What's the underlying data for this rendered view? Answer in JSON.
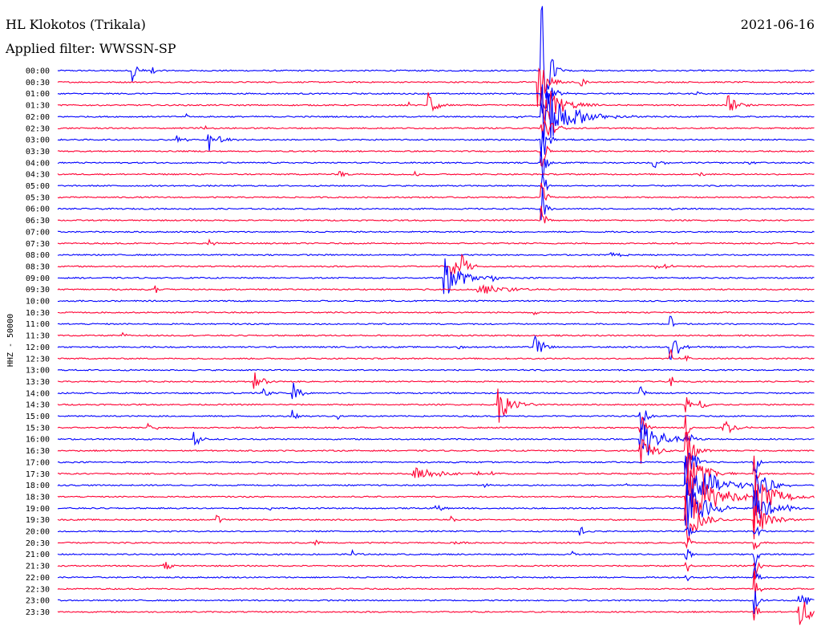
{
  "chart_data": {
    "type": "line",
    "title": "HL Klokotos (Trikala)",
    "date": "2021-06-16",
    "subtitle": "Applied filter: WWSSN-SP",
    "ylabel": "HHZ - 50000",
    "time_labels": [
      "00:00",
      "00:30",
      "01:00",
      "01:30",
      "02:00",
      "02:30",
      "03:00",
      "03:30",
      "04:00",
      "04:30",
      "05:00",
      "05:30",
      "06:00",
      "06:30",
      "07:00",
      "07:30",
      "08:00",
      "08:30",
      "09:00",
      "09:30",
      "10:00",
      "10:30",
      "11:00",
      "11:30",
      "12:00",
      "12:30",
      "13:00",
      "13:30",
      "14:00",
      "14:30",
      "15:00",
      "15:30",
      "16:00",
      "16:30",
      "17:00",
      "17:30",
      "18:00",
      "18:30",
      "19:00",
      "19:30",
      "20:00",
      "20:30",
      "21:00",
      "21:30",
      "22:00",
      "22:30",
      "23:00",
      "23:30"
    ],
    "trace_colors": [
      "#0000ff",
      "#ff0033"
    ],
    "events": [
      {
        "trace": 0,
        "x": 0.1,
        "amp": 14,
        "dur": 0.006
      },
      {
        "trace": 0,
        "x": 0.125,
        "amp": 6,
        "dur": 0.005
      },
      {
        "trace": 0,
        "x": 0.64,
        "amp": 90,
        "dur": 0.008
      },
      {
        "trace": 1,
        "x": 0.635,
        "amp": 40,
        "dur": 0.01
      },
      {
        "trace": 1,
        "x": 0.69,
        "amp": 8,
        "dur": 0.006
      },
      {
        "trace": 2,
        "x": 0.64,
        "amp": 30,
        "dur": 0.01
      },
      {
        "trace": 2,
        "x": 0.845,
        "amp": 5,
        "dur": 0.006
      },
      {
        "trace": 3,
        "x": 0.49,
        "amp": 25,
        "dur": 0.008
      },
      {
        "trace": 3,
        "x": 0.64,
        "amp": 35,
        "dur": 0.02
      },
      {
        "trace": 3,
        "x": 0.885,
        "amp": 14,
        "dur": 0.01
      },
      {
        "trace": 3,
        "x": 0.465,
        "amp": 3,
        "dur": 0.004
      },
      {
        "trace": 4,
        "x": 0.64,
        "amp": 45,
        "dur": 0.03
      },
      {
        "trace": 4,
        "x": 0.605,
        "amp": 5,
        "dur": 0.005
      },
      {
        "trace": 4,
        "x": 0.17,
        "amp": 4,
        "dur": 0.004
      },
      {
        "trace": 5,
        "x": 0.19,
        "amp": 6,
        "dur": 0.006
      },
      {
        "trace": 5,
        "x": 0.64,
        "amp": 25,
        "dur": 0.01
      },
      {
        "trace": 6,
        "x": 0.155,
        "amp": 8,
        "dur": 0.008
      },
      {
        "trace": 6,
        "x": 0.2,
        "amp": 18,
        "dur": 0.012
      },
      {
        "trace": 6,
        "x": 0.64,
        "amp": 40,
        "dur": 0.006
      },
      {
        "trace": 7,
        "x": 0.64,
        "amp": 30,
        "dur": 0.004
      },
      {
        "trace": 8,
        "x": 0.785,
        "amp": 12,
        "dur": 0.008
      },
      {
        "trace": 8,
        "x": 0.915,
        "amp": 4,
        "dur": 0.004
      },
      {
        "trace": 8,
        "x": 0.64,
        "amp": 30,
        "dur": 0.004
      },
      {
        "trace": 9,
        "x": 0.373,
        "amp": 8,
        "dur": 0.005
      },
      {
        "trace": 9,
        "x": 0.473,
        "amp": 4,
        "dur": 0.004
      },
      {
        "trace": 9,
        "x": 0.85,
        "amp": 3,
        "dur": 0.004
      },
      {
        "trace": 10,
        "x": 0.64,
        "amp": 30,
        "dur": 0.004
      },
      {
        "trace": 11,
        "x": 0.64,
        "amp": 30,
        "dur": 0.004
      },
      {
        "trace": 12,
        "x": 0.64,
        "amp": 30,
        "dur": 0.004
      },
      {
        "trace": 12,
        "x": 0.81,
        "amp": 3,
        "dur": 0.004
      },
      {
        "trace": 13,
        "x": 0.64,
        "amp": 25,
        "dur": 0.004
      },
      {
        "trace": 15,
        "x": 0.2,
        "amp": 5,
        "dur": 0.006
      },
      {
        "trace": 16,
        "x": 0.73,
        "amp": 4,
        "dur": 0.012
      },
      {
        "trace": 17,
        "x": 0.52,
        "amp": 20,
        "dur": 0.012
      },
      {
        "trace": 17,
        "x": 0.79,
        "amp": 8,
        "dur": 0.012
      },
      {
        "trace": 17,
        "x": 0.535,
        "amp": 10,
        "dur": 0.008
      },
      {
        "trace": 18,
        "x": 0.51,
        "amp": 28,
        "dur": 0.02
      },
      {
        "trace": 18,
        "x": 0.575,
        "amp": 4,
        "dur": 0.006
      },
      {
        "trace": 19,
        "x": 0.555,
        "amp": 8,
        "dur": 0.03
      },
      {
        "trace": 19,
        "x": 0.13,
        "amp": 6,
        "dur": 0.004
      },
      {
        "trace": 19,
        "x": 0.48,
        "amp": 3,
        "dur": 0.004
      },
      {
        "trace": 21,
        "x": 0.63,
        "amp": 3,
        "dur": 0.004
      },
      {
        "trace": 22,
        "x": 0.81,
        "amp": 10,
        "dur": 0.004
      },
      {
        "trace": 23,
        "x": 0.085,
        "amp": 4,
        "dur": 0.005
      },
      {
        "trace": 24,
        "x": 0.63,
        "amp": 16,
        "dur": 0.01
      },
      {
        "trace": 24,
        "x": 0.81,
        "amp": 20,
        "dur": 0.01
      },
      {
        "trace": 24,
        "x": 0.53,
        "amp": 3,
        "dur": 0.004
      },
      {
        "trace": 25,
        "x": 0.83,
        "amp": 5,
        "dur": 0.004
      },
      {
        "trace": 25,
        "x": 0.81,
        "amp": 12,
        "dur": 0.004
      },
      {
        "trace": 27,
        "x": 0.26,
        "amp": 12,
        "dur": 0.01
      },
      {
        "trace": 27,
        "x": 0.81,
        "amp": 8,
        "dur": 0.004
      },
      {
        "trace": 28,
        "x": 0.31,
        "amp": 16,
        "dur": 0.008
      },
      {
        "trace": 28,
        "x": 0.27,
        "amp": 8,
        "dur": 0.006
      },
      {
        "trace": 28,
        "x": 0.23,
        "amp": 4,
        "dur": 0.004
      },
      {
        "trace": 28,
        "x": 0.77,
        "amp": 10,
        "dur": 0.004
      },
      {
        "trace": 29,
        "x": 0.58,
        "amp": 28,
        "dur": 0.015
      },
      {
        "trace": 29,
        "x": 0.85,
        "amp": 8,
        "dur": 0.008
      },
      {
        "trace": 29,
        "x": 0.83,
        "amp": 20,
        "dur": 0.004
      },
      {
        "trace": 30,
        "x": 0.31,
        "amp": 10,
        "dur": 0.006
      },
      {
        "trace": 30,
        "x": 0.37,
        "amp": 4,
        "dur": 0.006
      },
      {
        "trace": 30,
        "x": 0.77,
        "amp": 25,
        "dur": 0.006
      },
      {
        "trace": 31,
        "x": 0.12,
        "amp": 6,
        "dur": 0.008
      },
      {
        "trace": 31,
        "x": 0.88,
        "amp": 12,
        "dur": 0.012
      },
      {
        "trace": 31,
        "x": 0.77,
        "amp": 25,
        "dur": 0.006
      },
      {
        "trace": 31,
        "x": 0.83,
        "amp": 30,
        "dur": 0.004
      },
      {
        "trace": 32,
        "x": 0.18,
        "amp": 10,
        "dur": 0.008
      },
      {
        "trace": 32,
        "x": 0.77,
        "amp": 35,
        "dur": 0.02
      },
      {
        "trace": 32,
        "x": 0.83,
        "amp": 30,
        "dur": 0.004
      },
      {
        "trace": 33,
        "x": 0.77,
        "amp": 20,
        "dur": 0.015
      },
      {
        "trace": 33,
        "x": 0.83,
        "amp": 30,
        "dur": 0.01
      },
      {
        "trace": 34,
        "x": 0.83,
        "amp": 30,
        "dur": 0.01
      },
      {
        "trace": 34,
        "x": 0.92,
        "amp": 30,
        "dur": 0.004
      },
      {
        "trace": 35,
        "x": 0.47,
        "amp": 9,
        "dur": 0.03
      },
      {
        "trace": 35,
        "x": 0.555,
        "amp": 4,
        "dur": 0.004
      },
      {
        "trace": 35,
        "x": 0.575,
        "amp": 4,
        "dur": 0.004
      },
      {
        "trace": 35,
        "x": 0.83,
        "amp": 30,
        "dur": 0.02
      },
      {
        "trace": 35,
        "x": 0.92,
        "amp": 30,
        "dur": 0.004
      },
      {
        "trace": 36,
        "x": 0.565,
        "amp": 5,
        "dur": 0.005
      },
      {
        "trace": 36,
        "x": 0.75,
        "amp": 4,
        "dur": 0.004
      },
      {
        "trace": 36,
        "x": 0.83,
        "amp": 40,
        "dur": 0.03
      },
      {
        "trace": 36,
        "x": 0.92,
        "amp": 30,
        "dur": 0.015
      },
      {
        "trace": 37,
        "x": 0.83,
        "amp": 45,
        "dur": 0.03
      },
      {
        "trace": 37,
        "x": 0.92,
        "amp": 40,
        "dur": 0.02
      },
      {
        "trace": 38,
        "x": 0.28,
        "amp": 4,
        "dur": 0.004
      },
      {
        "trace": 38,
        "x": 0.5,
        "amp": 8,
        "dur": 0.006
      },
      {
        "trace": 38,
        "x": 0.83,
        "amp": 40,
        "dur": 0.02
      },
      {
        "trace": 38,
        "x": 0.92,
        "amp": 30,
        "dur": 0.015
      },
      {
        "trace": 38,
        "x": 0.965,
        "amp": 6,
        "dur": 0.006
      },
      {
        "trace": 39,
        "x": 0.21,
        "amp": 6,
        "dur": 0.006
      },
      {
        "trace": 39,
        "x": 0.52,
        "amp": 4,
        "dur": 0.004
      },
      {
        "trace": 39,
        "x": 0.83,
        "amp": 35,
        "dur": 0.015
      },
      {
        "trace": 39,
        "x": 0.92,
        "amp": 25,
        "dur": 0.015
      },
      {
        "trace": 40,
        "x": 0.69,
        "amp": 8,
        "dur": 0.006
      },
      {
        "trace": 40,
        "x": 0.83,
        "amp": 20,
        "dur": 0.006
      },
      {
        "trace": 40,
        "x": 0.92,
        "amp": 15,
        "dur": 0.006
      },
      {
        "trace": 41,
        "x": 0.34,
        "amp": 4,
        "dur": 0.005
      },
      {
        "trace": 41,
        "x": 0.525,
        "amp": 4,
        "dur": 0.005
      },
      {
        "trace": 41,
        "x": 0.83,
        "amp": 20,
        "dur": 0.004
      },
      {
        "trace": 41,
        "x": 0.92,
        "amp": 25,
        "dur": 0.004
      },
      {
        "trace": 42,
        "x": 0.39,
        "amp": 5,
        "dur": 0.006
      },
      {
        "trace": 42,
        "x": 0.68,
        "amp": 4,
        "dur": 0.006
      },
      {
        "trace": 42,
        "x": 0.83,
        "amp": 15,
        "dur": 0.004
      },
      {
        "trace": 42,
        "x": 0.92,
        "amp": 25,
        "dur": 0.004
      },
      {
        "trace": 43,
        "x": 0.14,
        "amp": 10,
        "dur": 0.008
      },
      {
        "trace": 43,
        "x": 0.83,
        "amp": 15,
        "dur": 0.004
      },
      {
        "trace": 43,
        "x": 0.92,
        "amp": 25,
        "dur": 0.004
      },
      {
        "trace": 44,
        "x": 0.83,
        "amp": 8,
        "dur": 0.004
      },
      {
        "trace": 44,
        "x": 0.92,
        "amp": 25,
        "dur": 0.004
      },
      {
        "trace": 45,
        "x": 0.92,
        "amp": 25,
        "dur": 0.004
      },
      {
        "trace": 46,
        "x": 0.92,
        "amp": 25,
        "dur": 0.004
      },
      {
        "trace": 46,
        "x": 0.98,
        "amp": 14,
        "dur": 0.01
      },
      {
        "trace": 47,
        "x": 0.98,
        "amp": 22,
        "dur": 0.015
      },
      {
        "trace": 47,
        "x": 0.92,
        "amp": 25,
        "dur": 0.004
      }
    ]
  }
}
